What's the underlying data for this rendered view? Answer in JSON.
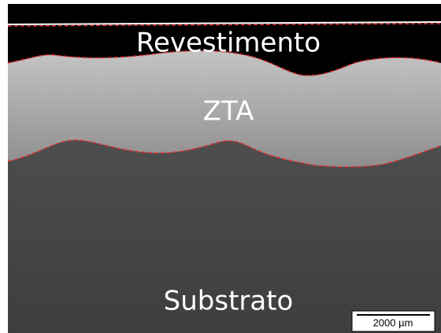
{
  "labels": {
    "coating": "Revestimento",
    "haz": "ZTA",
    "substrate": "Substrato"
  },
  "scale_bar": {
    "label": "2000 µm"
  }
}
